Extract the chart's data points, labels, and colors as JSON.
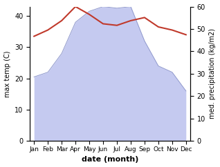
{
  "months": [
    "Jan",
    "Feb",
    "Mar",
    "Apr",
    "May",
    "Jun",
    "Jul",
    "Aug",
    "Sep",
    "Oct",
    "Nov",
    "Dec"
  ],
  "temp": [
    33.5,
    35.5,
    38.5,
    43.0,
    40.5,
    37.5,
    37.0,
    38.5,
    39.5,
    36.5,
    35.5,
    34.0
  ],
  "precip_left": [
    20.5,
    22.0,
    28.0,
    38.0,
    41.5,
    43.0,
    42.5,
    43.0,
    32.0,
    24.0,
    22.0,
    16.0
  ],
  "temp_color": "#c0392b",
  "precip_fill_color": "#c5caf0",
  "precip_line_color": "#9099cc",
  "left_ylabel": "max temp (C)",
  "right_ylabel": "med. precipitation (kg/m2)",
  "xlabel": "date (month)",
  "ylim_left": [
    0,
    43
  ],
  "ylim_right": [
    0,
    60
  ],
  "yticks_left": [
    0,
    10,
    20,
    30,
    40
  ],
  "yticks_right": [
    0,
    10,
    20,
    30,
    40,
    50,
    60
  ],
  "background_color": "#ffffff"
}
